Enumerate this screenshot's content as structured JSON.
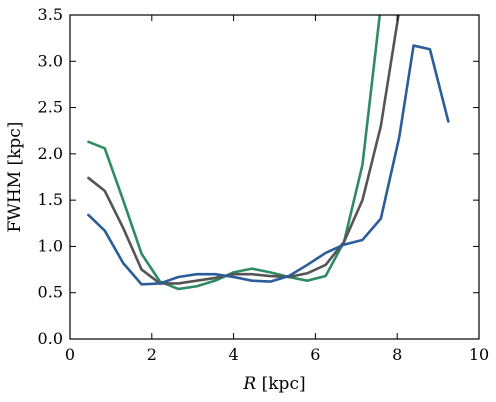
{
  "chart_data": {
    "type": "line",
    "xlabel_italic": "R",
    "xlabel_rest": " [kpc]",
    "ylabel": "FWHM [kpc]",
    "xlim": [
      0,
      10
    ],
    "ylim": [
      0.0,
      3.5
    ],
    "xticks": [
      0,
      2,
      4,
      6,
      8,
      10
    ],
    "xtick_labels": [
      "0",
      "2",
      "4",
      "6",
      "8",
      "10"
    ],
    "yticks": [
      0.0,
      0.5,
      1.0,
      1.5,
      2.0,
      2.5,
      3.0,
      3.5
    ],
    "ytick_labels": [
      "0.0",
      "0.5",
      "1.0",
      "1.5",
      "2.0",
      "2.5",
      "3.0",
      "3.5"
    ],
    "grid": false,
    "series": [
      {
        "color": "#2e8b62",
        "x": [
          0.45,
          0.85,
          1.3,
          1.75,
          2.2,
          2.65,
          3.1,
          3.55,
          4.0,
          4.45,
          4.9,
          5.35,
          5.8,
          6.25,
          6.7,
          7.15,
          7.6
        ],
        "y": [
          2.13,
          2.06,
          1.5,
          0.92,
          0.62,
          0.54,
          0.57,
          0.63,
          0.72,
          0.76,
          0.72,
          0.67,
          0.63,
          0.68,
          1.05,
          1.88,
          3.6
        ]
      },
      {
        "color": "#555555",
        "x": [
          0.45,
          0.85,
          1.3,
          1.75,
          2.2,
          2.65,
          3.1,
          3.55,
          4.0,
          4.45,
          4.9,
          5.35,
          5.8,
          6.25,
          6.7,
          7.15,
          7.6,
          8.05
        ],
        "y": [
          1.74,
          1.6,
          1.2,
          0.75,
          0.6,
          0.6,
          0.63,
          0.66,
          0.7,
          0.7,
          0.68,
          0.67,
          0.71,
          0.8,
          1.05,
          1.5,
          2.3,
          3.55
        ]
      },
      {
        "color": "#2b5d99",
        "x": [
          0.45,
          0.85,
          1.3,
          1.75,
          2.2,
          2.65,
          3.1,
          3.55,
          4.0,
          4.45,
          4.9,
          5.35,
          5.8,
          6.25,
          6.7,
          7.15,
          7.6,
          8.05,
          8.4,
          8.8,
          9.25
        ],
        "y": [
          1.34,
          1.17,
          0.82,
          0.59,
          0.6,
          0.67,
          0.7,
          0.7,
          0.67,
          0.63,
          0.62,
          0.68,
          0.8,
          0.93,
          1.02,
          1.07,
          1.3,
          2.18,
          3.17,
          3.13,
          2.35
        ]
      }
    ]
  }
}
